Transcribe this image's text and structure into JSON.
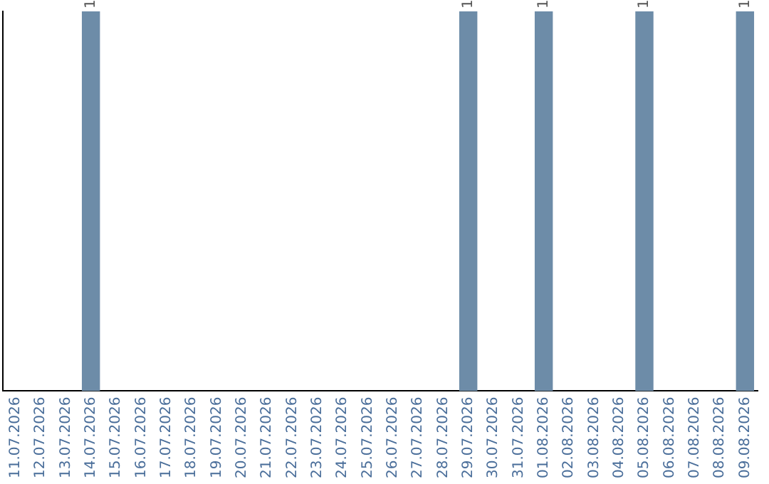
{
  "chart_data": {
    "type": "bar",
    "categories": [
      "11.07.2026",
      "12.07.2026",
      "13.07.2026",
      "14.07.2026",
      "15.07.2026",
      "16.07.2026",
      "17.07.2026",
      "18.07.2026",
      "19.07.2026",
      "20.07.2026",
      "21.07.2026",
      "22.07.2026",
      "23.07.2026",
      "24.07.2026",
      "25.07.2026",
      "26.07.2026",
      "27.07.2026",
      "28.07.2026",
      "29.07.2026",
      "30.07.2026",
      "31.07.2026",
      "01.08.2026",
      "02.08.2026",
      "03.08.2026",
      "04.08.2026",
      "05.08.2026",
      "06.08.2026",
      "07.08.2026",
      "08.08.2026",
      "09.08.2026"
    ],
    "values": [
      0,
      0,
      0,
      1,
      0,
      0,
      0,
      0,
      0,
      0,
      0,
      0,
      0,
      0,
      0,
      0,
      0,
      0,
      1,
      0,
      0,
      1,
      0,
      0,
      0,
      1,
      0,
      0,
      0,
      1
    ],
    "value_labels": [
      null,
      null,
      null,
      "1",
      null,
      null,
      null,
      null,
      null,
      null,
      null,
      null,
      null,
      null,
      null,
      null,
      null,
      null,
      "1",
      null,
      null,
      "1",
      null,
      null,
      null,
      "1",
      null,
      null,
      null,
      "1"
    ],
    "color": "#6d8ca8",
    "tick_labels": "x",
    "grid": false,
    "legend": false
  }
}
